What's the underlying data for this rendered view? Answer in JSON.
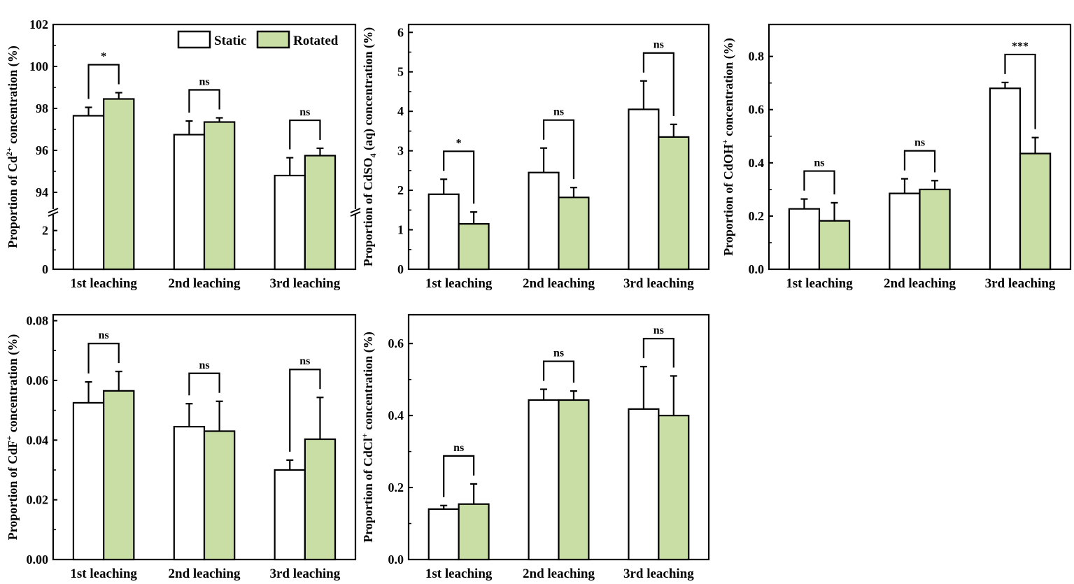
{
  "colors": {
    "static": "#ffffff",
    "rotated": "#c8dea4",
    "stroke": "#000000"
  },
  "legend": {
    "static": "Static",
    "rotated": "Rotated",
    "placement": "top-right of first panel"
  },
  "chart_data": [
    {
      "type": "bar",
      "title": "",
      "ylabel": {
        "pre": "Proportion of Cd",
        "sup": "2+",
        "sub": "",
        "post": " concentration (%)"
      },
      "categories": [
        "1st leaching",
        "2nd leaching",
        "3rd leaching"
      ],
      "ylim": [
        0,
        102
      ],
      "axis_break": [
        2.6,
        93.4
      ],
      "yticks": [
        "0",
        "2",
        "94",
        "96",
        "98",
        "100",
        "102"
      ],
      "series": [
        {
          "name": "Static",
          "values": [
            97.65,
            96.75,
            94.8
          ],
          "errors": [
            0.4,
            0.65,
            0.85
          ]
        },
        {
          "name": "Rotated",
          "values": [
            98.45,
            97.35,
            95.75
          ],
          "errors": [
            0.3,
            0.2,
            0.35
          ]
        }
      ],
      "significance": [
        "*",
        "ns",
        "ns"
      ]
    },
    {
      "type": "bar",
      "title": "",
      "ylabel": {
        "pre": "Proportion of CdSO",
        "sup": "",
        "sub": "4",
        "post": " (aq) concentration (%)"
      },
      "categories": [
        "1st leaching",
        "2nd leaching",
        "3rd leaching"
      ],
      "ylim": [
        0,
        6.2
      ],
      "yticks": [
        "0",
        "1",
        "2",
        "3",
        "4",
        "5",
        "6"
      ],
      "series": [
        {
          "name": "Static",
          "values": [
            1.9,
            2.45,
            4.05
          ],
          "errors": [
            0.38,
            0.62,
            0.72
          ]
        },
        {
          "name": "Rotated",
          "values": [
            1.15,
            1.82,
            3.35
          ],
          "errors": [
            0.3,
            0.25,
            0.32
          ]
        }
      ],
      "significance": [
        "*",
        "ns",
        "ns"
      ]
    },
    {
      "type": "bar",
      "title": "",
      "ylabel": {
        "pre": "Proportion of CdOH",
        "sup": "+",
        "sub": "",
        "post": " concentration (%)"
      },
      "categories": [
        "1st leaching",
        "2nd leaching",
        "3rd leaching"
      ],
      "ylim": [
        0,
        0.92
      ],
      "yticks": [
        "0.0",
        "0.2",
        "0.4",
        "0.6",
        "0.8"
      ],
      "series": [
        {
          "name": "Static",
          "values": [
            0.227,
            0.285,
            0.68
          ],
          "errors": [
            0.037,
            0.055,
            0.022
          ]
        },
        {
          "name": "Rotated",
          "values": [
            0.182,
            0.3,
            0.435
          ],
          "errors": [
            0.068,
            0.033,
            0.06
          ]
        }
      ],
      "significance": [
        "ns",
        "ns",
        "***"
      ]
    },
    {
      "type": "bar",
      "title": "",
      "ylabel": {
        "pre": "Proportion of CdF",
        "sup": "+",
        "sub": "",
        "post": " concentration (%)"
      },
      "categories": [
        "1st leaching",
        "2nd leaching",
        "3rd leaching"
      ],
      "ylim": [
        0,
        0.082
      ],
      "yticks": [
        "0.00",
        "0.02",
        "0.04",
        "0.06",
        "0.08"
      ],
      "series": [
        {
          "name": "Static",
          "values": [
            0.0525,
            0.0445,
            0.03
          ],
          "errors": [
            0.007,
            0.0077,
            0.0033
          ]
        },
        {
          "name": "Rotated",
          "values": [
            0.0565,
            0.043,
            0.0403
          ],
          "errors": [
            0.0065,
            0.01,
            0.014
          ]
        }
      ],
      "significance": [
        "ns",
        "ns",
        "ns"
      ]
    },
    {
      "type": "bar",
      "title": "",
      "ylabel": {
        "pre": "Proportion of CdCl",
        "sup": "+",
        "sub": "",
        "post": " concentration (%)"
      },
      "categories": [
        "1st leaching",
        "2nd leaching",
        "3rd leaching"
      ],
      "ylim": [
        0,
        0.68
      ],
      "yticks": [
        "0.0",
        "0.2",
        "0.4",
        "0.6"
      ],
      "series": [
        {
          "name": "Static",
          "values": [
            0.14,
            0.443,
            0.418
          ],
          "errors": [
            0.01,
            0.03,
            0.118
          ]
        },
        {
          "name": "Rotated",
          "values": [
            0.154,
            0.443,
            0.4
          ],
          "errors": [
            0.056,
            0.025,
            0.11
          ]
        }
      ],
      "significance": [
        "ns",
        "ns",
        "ns"
      ]
    }
  ]
}
